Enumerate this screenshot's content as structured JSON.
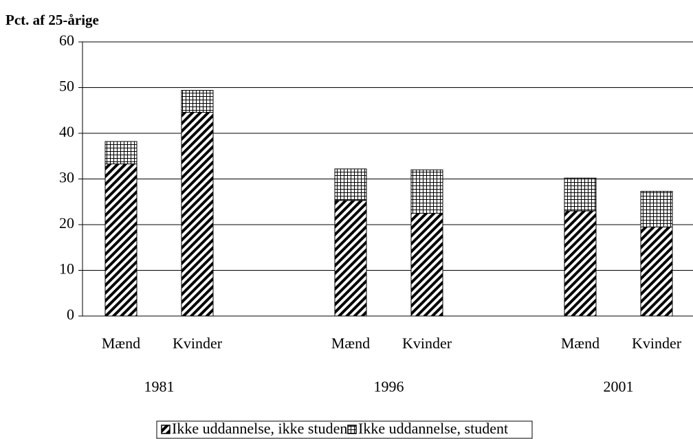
{
  "chart_data": {
    "type": "bar",
    "stacked": true,
    "ylabel": "Pct. af 25-årige",
    "categories": [
      "Mænd",
      "Kvinder",
      "Mænd",
      "Kvinder",
      "Mænd",
      "Kvinder"
    ],
    "groups": [
      "1981",
      "1996",
      "2001"
    ],
    "series": [
      {
        "name": "Ikke uddannelse, ikke student",
        "pattern": "hatch",
        "values": [
          33.3,
          44.6,
          25.3,
          22.5,
          23.0,
          19.5
        ]
      },
      {
        "name": "Ikke uddannelse, student",
        "pattern": "grid",
        "values": [
          4.9,
          4.8,
          6.9,
          9.5,
          7.2,
          7.8
        ]
      }
    ],
    "ylim": [
      0,
      60
    ],
    "yticks": [
      0,
      10,
      20,
      30,
      40,
      50,
      60
    ],
    "grid": true,
    "legend": "bottom"
  }
}
